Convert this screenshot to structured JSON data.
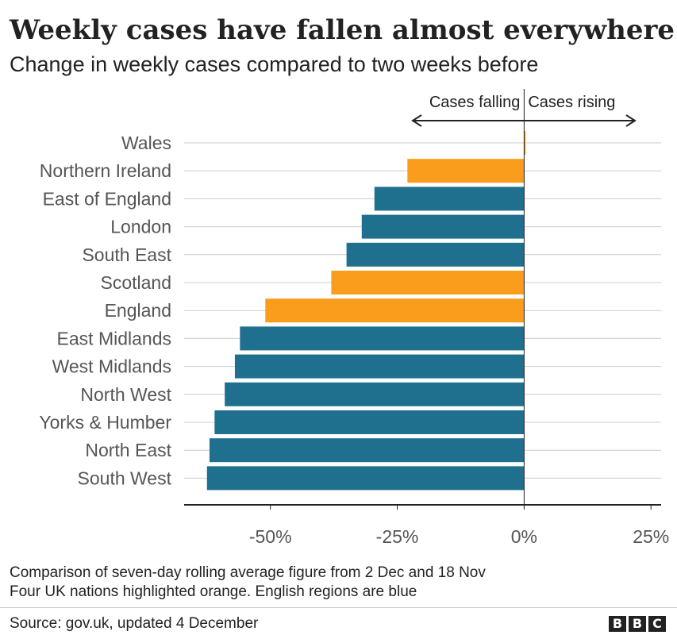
{
  "title": "Weekly cases have fallen almost everywhere",
  "subtitle": "Change in weekly cases compared to two weeks before",
  "annotations": {
    "falling": "Cases falling",
    "rising": "Cases rising"
  },
  "footnotes": [
    "Comparison of seven-day rolling average figure from 2 Dec and 18 Nov",
    "Four UK nations highlighted orange. English regions are blue"
  ],
  "source": "Source: gov.uk, updated 4 December",
  "brand": [
    "B",
    "B",
    "C"
  ],
  "colors": {
    "nation": "#fa9c1c",
    "region": "#1f6f8f",
    "grid": "#cccccc",
    "axis": "#222222",
    "label": "#555555"
  },
  "chart_data": {
    "type": "bar",
    "orientation": "horizontal",
    "categories": [
      "Wales",
      "Northern Ireland",
      "East of England",
      "London",
      "South East",
      "Scotland",
      "England",
      "East Midlands",
      "West Midlands",
      "North West",
      "Yorks & Humber",
      "North East",
      "South West"
    ],
    "values": [
      0.3,
      -23,
      -29.5,
      -32,
      -35,
      -38,
      -51,
      -56,
      -57,
      -59,
      -61,
      -62,
      -62.5
    ],
    "groups": [
      "nation",
      "nation",
      "region",
      "region",
      "region",
      "nation",
      "nation",
      "region",
      "region",
      "region",
      "region",
      "region",
      "region"
    ],
    "xlim": [
      -67,
      27
    ],
    "xticks": [
      -50,
      -25,
      0,
      25
    ],
    "xtick_labels": [
      "-50%",
      "-25%",
      "0%",
      "25%"
    ],
    "grid": true
  }
}
